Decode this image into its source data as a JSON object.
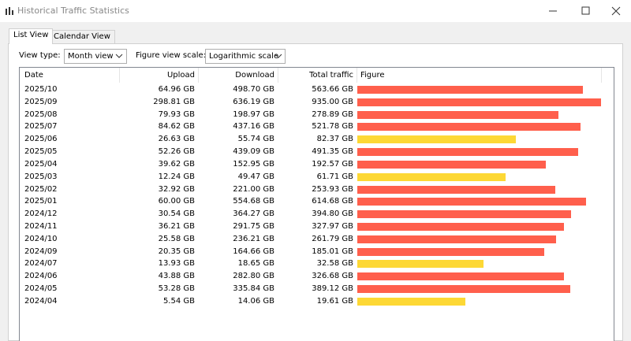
{
  "window": {
    "title": "Historical Traffic Statistics"
  },
  "tabs": [
    "List View",
    "Calendar View"
  ],
  "toolbar": {
    "view_type_label": "View type:",
    "view_type": "Month view",
    "scale_label": "Figure view scale:",
    "scale": "Logarithmic scale",
    "log_scale": true
  },
  "table": {
    "headers": [
      "Date",
      "Upload",
      "Download",
      "Total traffic",
      "Figure"
    ],
    "rows": [
      {
        "date": "2025/10",
        "upload": "64.96 GB",
        "download": "498.70 GB",
        "total": {
          "value": 563.66,
          "label": "563.66 GB"
        },
        "color": "#ff5f4c"
      },
      {
        "date": "2025/09",
        "upload": "298.81 GB",
        "download": "636.19 GB",
        "total": {
          "value": 935.0,
          "label": "935.00 GB"
        },
        "color": "#ff5f4c"
      },
      {
        "date": "2025/08",
        "upload": "79.93 GB",
        "download": "198.97 GB",
        "total": {
          "value": 278.89,
          "label": "278.89 GB"
        },
        "color": "#ff5f4c"
      },
      {
        "date": "2025/07",
        "upload": "84.62 GB",
        "download": "437.16 GB",
        "total": {
          "value": 521.78,
          "label": "521.78 GB"
        },
        "color": "#ff5f4c"
      },
      {
        "date": "2025/06",
        "upload": "26.63 GB",
        "download": "55.74 GB",
        "total": {
          "value": 82.37,
          "label": "82.37 GB"
        },
        "color": "#fdd835"
      },
      {
        "date": "2025/05",
        "upload": "52.26 GB",
        "download": "439.09 GB",
        "total": {
          "value": 491.35,
          "label": "491.35 GB"
        },
        "color": "#ff5f4c"
      },
      {
        "date": "2025/04",
        "upload": "39.62 GB",
        "download": "152.95 GB",
        "total": {
          "value": 192.57,
          "label": "192.57 GB"
        },
        "color": "#ff5f4c"
      },
      {
        "date": "2025/03",
        "upload": "12.24 GB",
        "download": "49.47 GB",
        "total": {
          "value": 61.71,
          "label": "61.71 GB"
        },
        "color": "#fdd835"
      },
      {
        "date": "2025/02",
        "upload": "32.92 GB",
        "download": "221.00 GB",
        "total": {
          "value": 253.93,
          "label": "253.93 GB"
        },
        "color": "#ff5f4c"
      },
      {
        "date": "2025/01",
        "upload": "60.00 GB",
        "download": "554.68 GB",
        "total": {
          "value": 614.68,
          "label": "614.68 GB"
        },
        "color": "#ff5f4c"
      },
      {
        "date": "2024/12",
        "upload": "30.54 GB",
        "download": "364.27 GB",
        "total": {
          "value": 394.8,
          "label": "394.80 GB"
        },
        "color": "#ff5f4c"
      },
      {
        "date": "2024/11",
        "upload": "36.21 GB",
        "download": "291.75 GB",
        "total": {
          "value": 327.97,
          "label": "327.97 GB"
        },
        "color": "#ff5f4c"
      },
      {
        "date": "2024/10",
        "upload": "25.58 GB",
        "download": "236.21 GB",
        "total": {
          "value": 261.79,
          "label": "261.79 GB"
        },
        "color": "#ff5f4c"
      },
      {
        "date": "2024/09",
        "upload": "20.35 GB",
        "download": "164.66 GB",
        "total": {
          "value": 185.01,
          "label": "185.01 GB"
        },
        "color": "#ff5f4c"
      },
      {
        "date": "2024/07",
        "upload": "13.93 GB",
        "download": "18.65 GB",
        "total": {
          "value": 32.58,
          "label": "32.58 GB"
        },
        "color": "#fdd835"
      },
      {
        "date": "2024/06",
        "upload": "43.88 GB",
        "download": "282.80 GB",
        "total": {
          "value": 326.68,
          "label": "326.68 GB"
        },
        "color": "#ff5f4c"
      },
      {
        "date": "2024/05",
        "upload": "53.28 GB",
        "download": "335.84 GB",
        "total": {
          "value": 389.12,
          "label": "389.12 GB"
        },
        "color": "#ff5f4c"
      },
      {
        "date": "2024/04",
        "upload": "5.54 GB",
        "download": "14.06 GB",
        "total": {
          "value": 19.61,
          "label": "19.61 GB"
        },
        "color": "#fdd835"
      }
    ]
  }
}
